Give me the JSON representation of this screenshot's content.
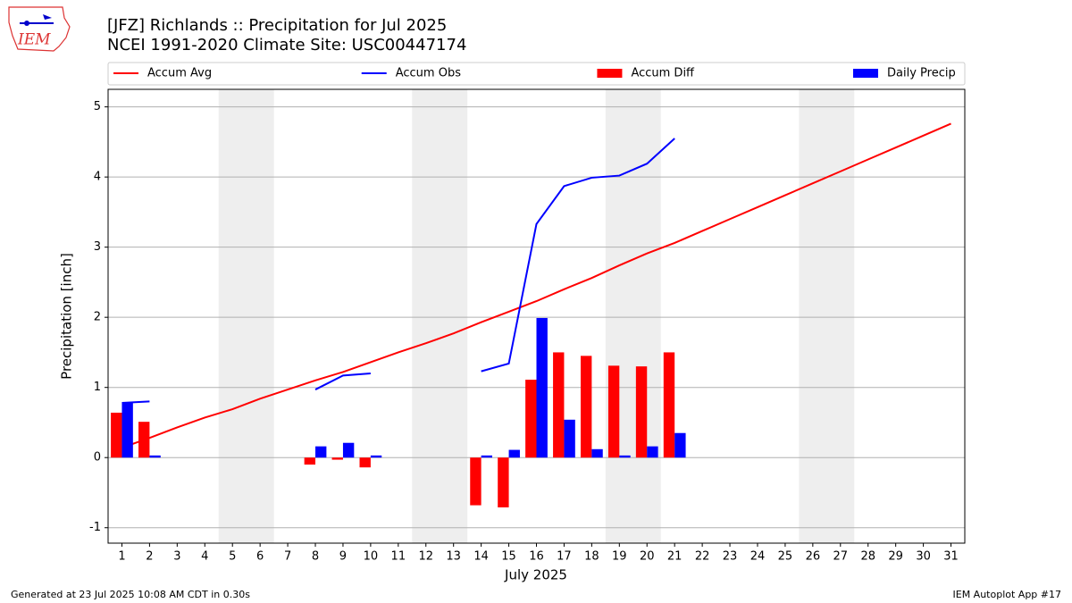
{
  "chart_data": {
    "type": "combo",
    "logo_text": "IEM",
    "title": "[JFZ] Richlands :: Precipitation for Jul 2025",
    "subtitle": "NCEI 1991-2020 Climate Site: USC00447174",
    "xlabel": "July 2025",
    "ylabel": "Precipitation [inch]",
    "footer_left": "Generated at 23 Jul 2025 10:08 AM CDT in 0.30s",
    "footer_right": "IEM Autoplot App #17",
    "x": [
      1,
      2,
      3,
      4,
      5,
      6,
      7,
      8,
      9,
      10,
      11,
      12,
      13,
      14,
      15,
      16,
      17,
      18,
      19,
      20,
      21,
      22,
      23,
      24,
      25,
      26,
      27,
      28,
      29,
      30,
      31
    ],
    "xlim": [
      0.5,
      31.5
    ],
    "xticks": [
      1,
      2,
      3,
      4,
      5,
      6,
      7,
      8,
      9,
      10,
      11,
      12,
      13,
      14,
      15,
      16,
      17,
      18,
      19,
      20,
      21,
      22,
      23,
      24,
      25,
      26,
      27,
      28,
      29,
      30,
      31
    ],
    "ylim": [
      -1.22,
      5.25
    ],
    "yticks": [
      -1,
      0,
      1,
      2,
      3,
      4,
      5
    ],
    "grid": true,
    "shaded_spans": [
      [
        4.5,
        6.5
      ],
      [
        11.5,
        13.5
      ],
      [
        18.5,
        20.5
      ],
      [
        25.5,
        27.5
      ]
    ],
    "shade_color": "#eeeeee",
    "legend": "top",
    "series": [
      {
        "name": "Accum Avg",
        "kind": "line",
        "color": "#ff0000",
        "values": [
          0.14,
          0.28,
          0.43,
          0.57,
          0.69,
          0.84,
          0.97,
          1.1,
          1.22,
          1.36,
          1.5,
          1.63,
          1.77,
          1.93,
          2.08,
          2.23,
          2.4,
          2.56,
          2.74,
          2.91,
          3.06,
          3.23,
          3.4,
          3.57,
          3.74,
          3.91,
          4.08,
          4.25,
          4.42,
          4.59,
          4.76
        ]
      },
      {
        "name": "Accum Obs",
        "kind": "line",
        "color": "#0000ff",
        "values": [
          0.78,
          0.8,
          null,
          null,
          null,
          null,
          null,
          0.97,
          1.17,
          1.2,
          null,
          null,
          null,
          1.23,
          1.34,
          3.33,
          3.87,
          3.99,
          4.02,
          4.19,
          4.55,
          null,
          null,
          null,
          null,
          null,
          null,
          null,
          null,
          null,
          null
        ]
      },
      {
        "name": "Accum Diff",
        "kind": "bar",
        "color": "#ff0000",
        "offset": -0.4,
        "width": 0.4,
        "values": [
          0.64,
          0.51,
          null,
          null,
          null,
          null,
          null,
          -0.1,
          -0.03,
          -0.14,
          null,
          null,
          null,
          -0.68,
          -0.71,
          1.11,
          1.5,
          1.45,
          1.31,
          1.3,
          1.5,
          null,
          null,
          null,
          null,
          null,
          null,
          null,
          null,
          null,
          null
        ]
      },
      {
        "name": "Daily Precip",
        "kind": "bar",
        "color": "#0000ff",
        "offset": 0,
        "width": 0.4,
        "values": [
          0.78,
          0.03,
          null,
          null,
          null,
          null,
          null,
          0.16,
          0.21,
          0.03,
          null,
          null,
          null,
          0.03,
          0.11,
          1.99,
          0.54,
          0.12,
          0.03,
          0.16,
          0.35,
          null,
          null,
          null,
          null,
          null,
          null,
          null,
          null,
          null,
          null
        ]
      }
    ]
  }
}
